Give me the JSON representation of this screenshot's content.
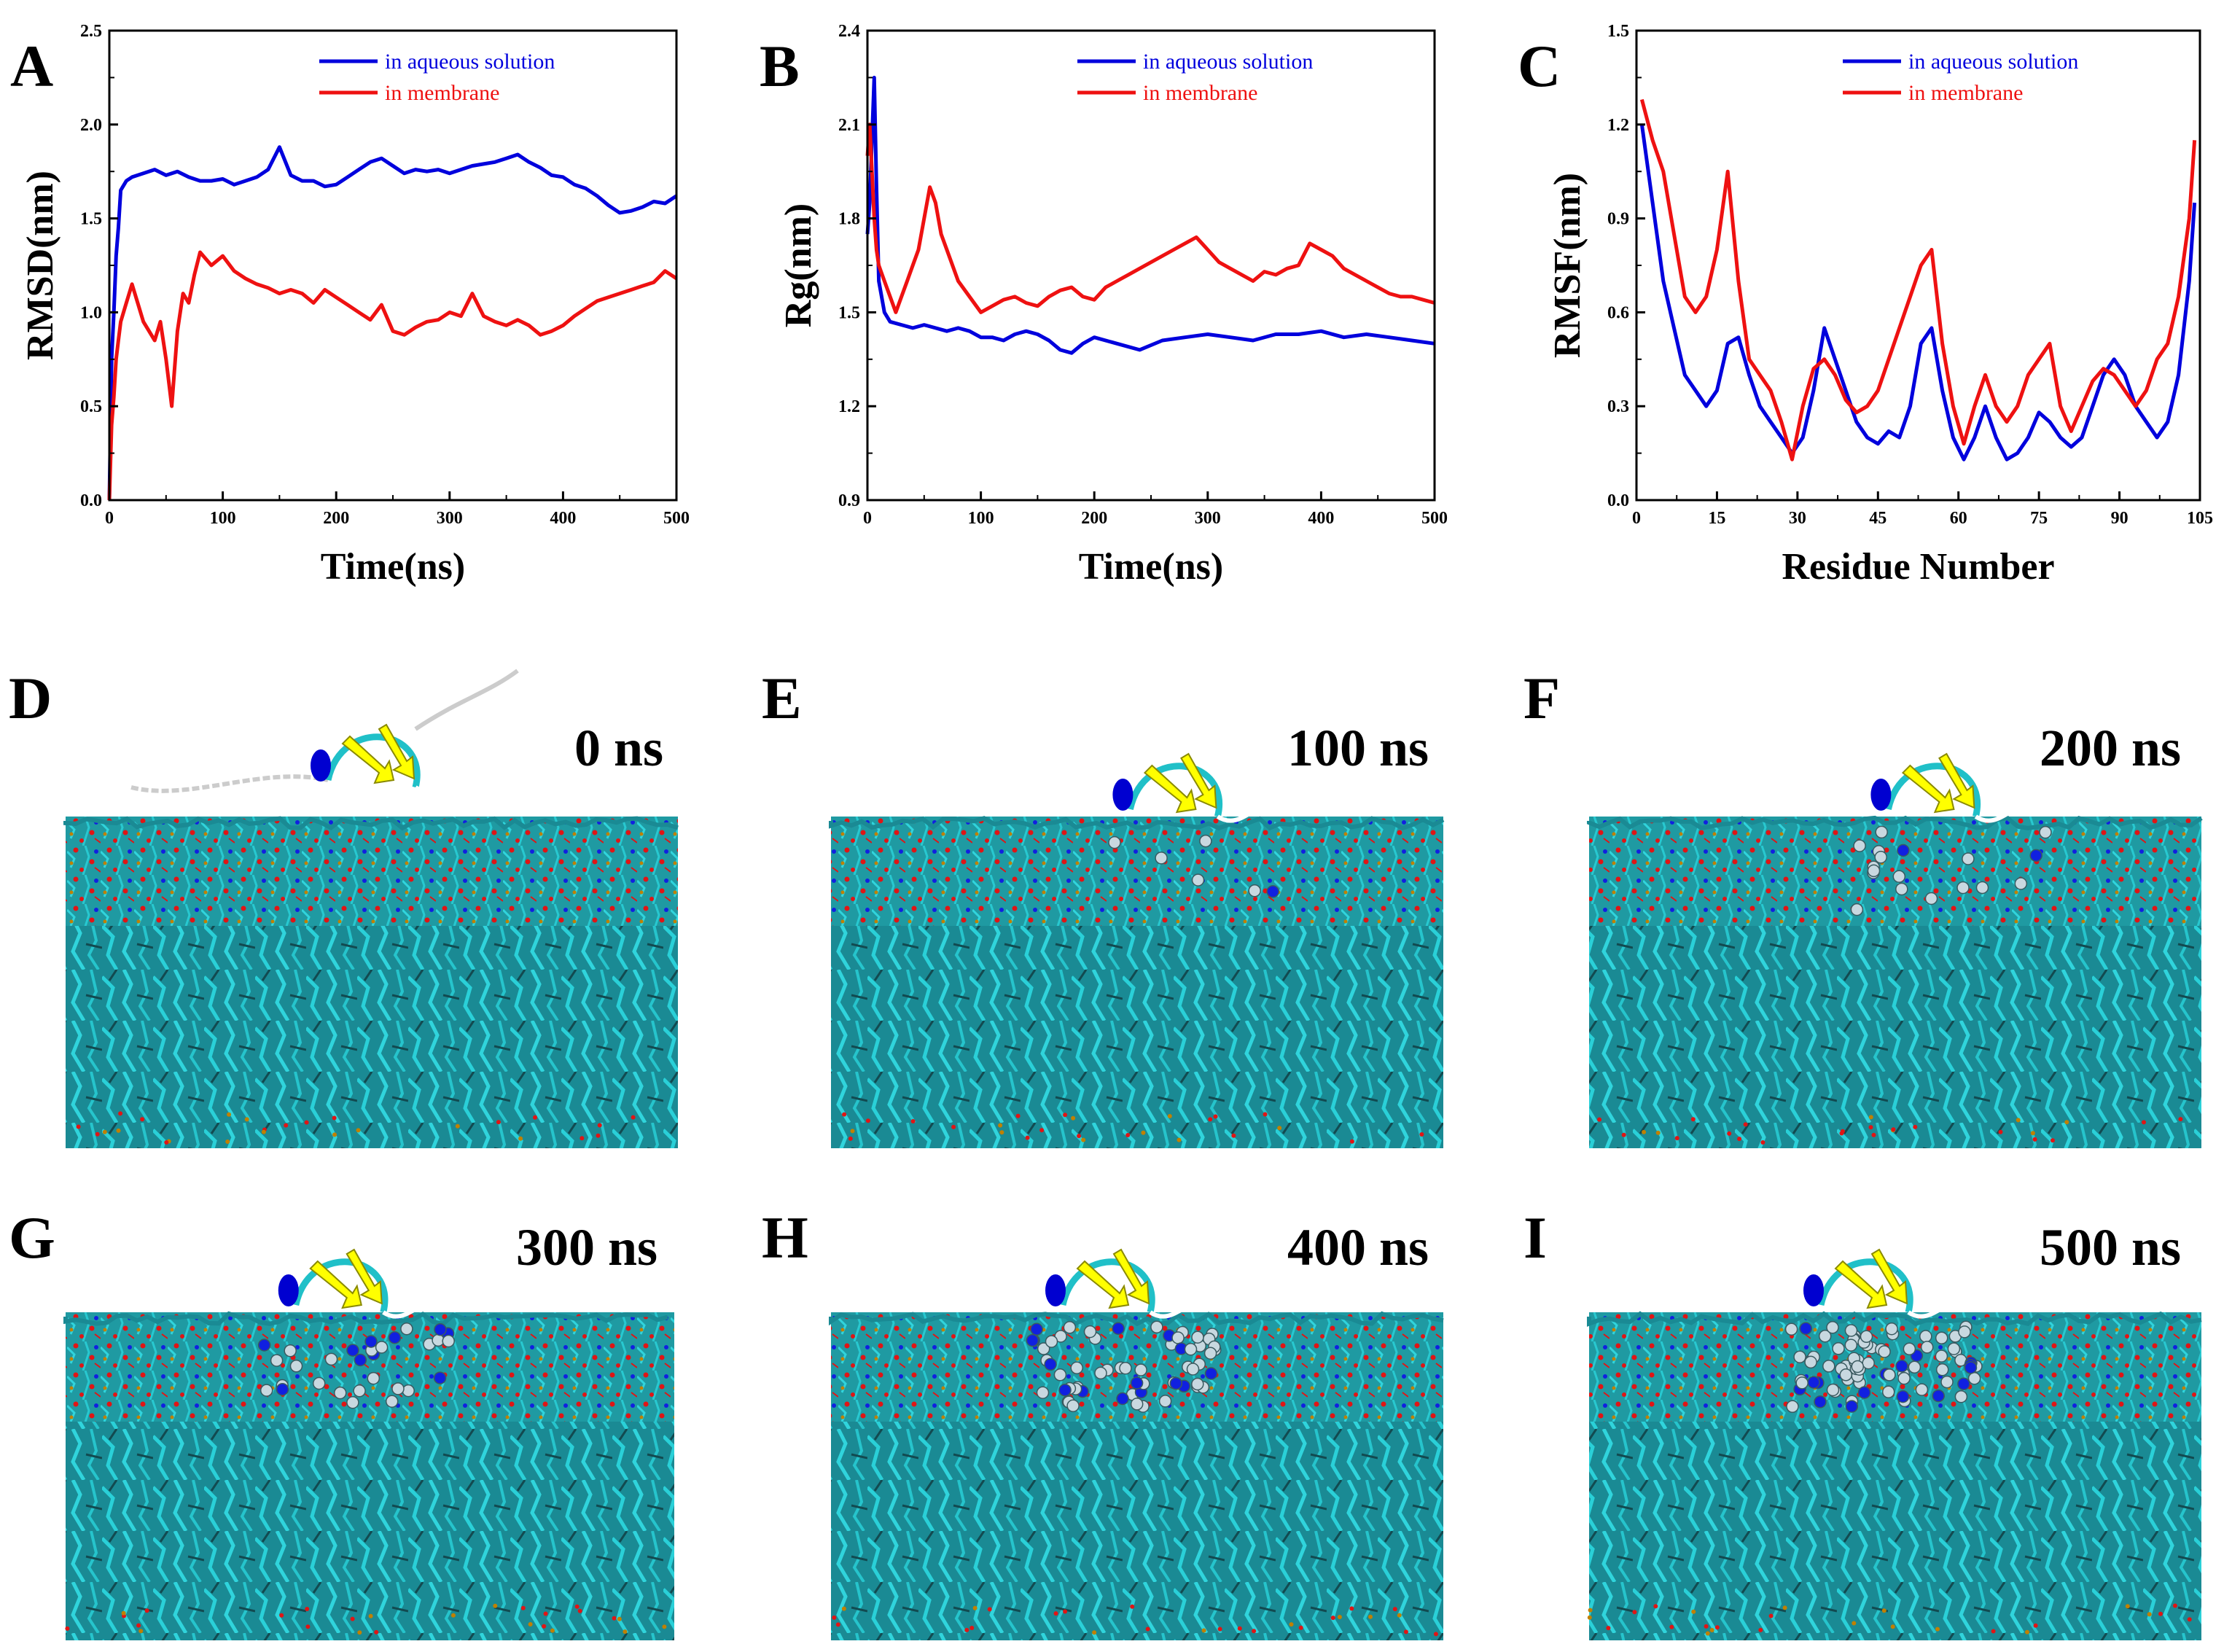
{
  "chart_data": [
    {
      "panel_label": "A",
      "type": "line",
      "xlabel": "Time(ns)",
      "ylabel": "RMSD(nm)",
      "xlim": [
        0,
        500
      ],
      "ylim": [
        0,
        2.5
      ],
      "xticks": [
        "0",
        "100",
        "200",
        "300",
        "400",
        "500"
      ],
      "yticks": [
        "0.0",
        "0.5",
        "1.0",
        "1.5",
        "2.0",
        "2.5"
      ],
      "legend": {
        "position": "top-right"
      },
      "series": [
        {
          "name": "in aqueous solution",
          "color": "#0000dd",
          "x": [
            0,
            2,
            4,
            6,
            8,
            10,
            15,
            20,
            30,
            40,
            50,
            60,
            70,
            80,
            90,
            100,
            110,
            120,
            130,
            140,
            150,
            160,
            170,
            180,
            190,
            200,
            210,
            220,
            230,
            240,
            250,
            260,
            270,
            280,
            290,
            300,
            310,
            320,
            330,
            340,
            350,
            360,
            370,
            380,
            390,
            400,
            410,
            420,
            430,
            440,
            450,
            460,
            470,
            480,
            490,
            500
          ],
          "y": [
            0.0,
            0.75,
            1.0,
            1.3,
            1.45,
            1.65,
            1.7,
            1.72,
            1.74,
            1.76,
            1.73,
            1.75,
            1.72,
            1.7,
            1.7,
            1.71,
            1.68,
            1.7,
            1.72,
            1.76,
            1.88,
            1.73,
            1.7,
            1.7,
            1.67,
            1.68,
            1.72,
            1.76,
            1.8,
            1.82,
            1.78,
            1.74,
            1.76,
            1.75,
            1.76,
            1.74,
            1.76,
            1.78,
            1.79,
            1.8,
            1.82,
            1.84,
            1.8,
            1.77,
            1.73,
            1.72,
            1.68,
            1.66,
            1.62,
            1.57,
            1.53,
            1.54,
            1.56,
            1.59,
            1.58,
            1.62
          ]
        },
        {
          "name": "in membrane",
          "color": "#ee1111",
          "x": [
            0,
            2,
            4,
            6,
            8,
            10,
            15,
            20,
            25,
            30,
            35,
            40,
            45,
            50,
            55,
            60,
            65,
            70,
            75,
            80,
            90,
            100,
            110,
            120,
            130,
            140,
            150,
            160,
            170,
            180,
            190,
            200,
            210,
            220,
            230,
            240,
            250,
            260,
            270,
            280,
            290,
            300,
            310,
            320,
            330,
            340,
            350,
            360,
            370,
            380,
            390,
            400,
            410,
            420,
            430,
            440,
            450,
            460,
            470,
            480,
            490,
            500
          ],
          "y": [
            0.0,
            0.4,
            0.55,
            0.75,
            0.85,
            0.95,
            1.05,
            1.15,
            1.05,
            0.95,
            0.9,
            0.85,
            0.95,
            0.75,
            0.5,
            0.9,
            1.1,
            1.05,
            1.2,
            1.32,
            1.25,
            1.3,
            1.22,
            1.18,
            1.15,
            1.13,
            1.1,
            1.12,
            1.1,
            1.05,
            1.12,
            1.08,
            1.04,
            1.0,
            0.96,
            1.04,
            0.9,
            0.88,
            0.92,
            0.95,
            0.96,
            1.0,
            0.98,
            1.1,
            0.98,
            0.95,
            0.93,
            0.96,
            0.93,
            0.88,
            0.9,
            0.93,
            0.98,
            1.02,
            1.06,
            1.08,
            1.1,
            1.12,
            1.14,
            1.16,
            1.22,
            1.18
          ]
        }
      ]
    },
    {
      "panel_label": "B",
      "type": "line",
      "xlabel": "Time(ns)",
      "ylabel": "Rg(nm)",
      "xlim": [
        0,
        500
      ],
      "ylim": [
        0.9,
        2.4
      ],
      "xticks": [
        "0",
        "100",
        "200",
        "300",
        "400",
        "500"
      ],
      "yticks": [
        "0.9",
        "1.2",
        "1.5",
        "1.8",
        "2.1",
        "2.4"
      ],
      "legend": {
        "position": "top-right"
      },
      "series": [
        {
          "name": "in aqueous solution",
          "color": "#0000dd",
          "x": [
            0,
            2,
            4,
            6,
            8,
            10,
            15,
            20,
            30,
            40,
            50,
            60,
            70,
            80,
            90,
            100,
            110,
            120,
            130,
            140,
            150,
            160,
            170,
            180,
            190,
            200,
            220,
            240,
            260,
            280,
            300,
            320,
            340,
            360,
            380,
            400,
            420,
            440,
            460,
            480,
            500
          ],
          "y": [
            1.75,
            1.85,
            2.05,
            2.25,
            1.9,
            1.6,
            1.5,
            1.47,
            1.46,
            1.45,
            1.46,
            1.45,
            1.44,
            1.45,
            1.44,
            1.42,
            1.42,
            1.41,
            1.43,
            1.44,
            1.43,
            1.41,
            1.38,
            1.37,
            1.4,
            1.42,
            1.4,
            1.38,
            1.41,
            1.42,
            1.43,
            1.42,
            1.41,
            1.43,
            1.43,
            1.44,
            1.42,
            1.43,
            1.42,
            1.41,
            1.4
          ]
        },
        {
          "name": "in membrane",
          "color": "#ee1111",
          "x": [
            0,
            2,
            4,
            6,
            8,
            10,
            15,
            20,
            25,
            30,
            35,
            40,
            45,
            50,
            55,
            60,
            65,
            70,
            75,
            80,
            90,
            100,
            110,
            120,
            130,
            140,
            150,
            160,
            170,
            180,
            190,
            200,
            210,
            220,
            230,
            240,
            250,
            260,
            270,
            280,
            290,
            300,
            310,
            320,
            330,
            340,
            350,
            360,
            370,
            380,
            390,
            400,
            410,
            420,
            430,
            440,
            450,
            460,
            470,
            480,
            490,
            500
          ],
          "y": [
            2.0,
            2.1,
            1.95,
            1.8,
            1.7,
            1.65,
            1.6,
            1.55,
            1.5,
            1.55,
            1.6,
            1.65,
            1.7,
            1.8,
            1.9,
            1.85,
            1.75,
            1.7,
            1.65,
            1.6,
            1.55,
            1.5,
            1.52,
            1.54,
            1.55,
            1.53,
            1.52,
            1.55,
            1.57,
            1.58,
            1.55,
            1.54,
            1.58,
            1.6,
            1.62,
            1.64,
            1.66,
            1.68,
            1.7,
            1.72,
            1.74,
            1.7,
            1.66,
            1.64,
            1.62,
            1.6,
            1.63,
            1.62,
            1.64,
            1.65,
            1.72,
            1.7,
            1.68,
            1.64,
            1.62,
            1.6,
            1.58,
            1.56,
            1.55,
            1.55,
            1.54,
            1.53
          ]
        }
      ]
    },
    {
      "panel_label": "C",
      "type": "line",
      "xlabel": "Residue Number",
      "ylabel": "RMSF(nm)",
      "xlim": [
        0,
        105
      ],
      "ylim": [
        0,
        1.5
      ],
      "xticks": [
        "0",
        "15",
        "30",
        "45",
        "60",
        "75",
        "90",
        "105"
      ],
      "yticks": [
        "0.0",
        "0.3",
        "0.6",
        "0.9",
        "1.2",
        "1.5"
      ],
      "legend": {
        "position": "top-right"
      },
      "series": [
        {
          "name": "in aqueous solution",
          "color": "#0000dd",
          "x": [
            1,
            3,
            5,
            7,
            9,
            11,
            13,
            15,
            17,
            19,
            21,
            23,
            25,
            27,
            29,
            31,
            33,
            35,
            37,
            39,
            41,
            43,
            45,
            47,
            49,
            51,
            53,
            55,
            57,
            59,
            61,
            63,
            65,
            67,
            69,
            71,
            73,
            75,
            77,
            79,
            81,
            83,
            85,
            87,
            89,
            91,
            93,
            95,
            97,
            99,
            101,
            103,
            104
          ],
          "y": [
            1.2,
            0.95,
            0.7,
            0.55,
            0.4,
            0.35,
            0.3,
            0.35,
            0.5,
            0.52,
            0.4,
            0.3,
            0.25,
            0.2,
            0.15,
            0.2,
            0.35,
            0.55,
            0.45,
            0.35,
            0.25,
            0.2,
            0.18,
            0.22,
            0.2,
            0.3,
            0.5,
            0.55,
            0.35,
            0.2,
            0.13,
            0.2,
            0.3,
            0.2,
            0.13,
            0.15,
            0.2,
            0.28,
            0.25,
            0.2,
            0.17,
            0.2,
            0.3,
            0.4,
            0.45,
            0.4,
            0.3,
            0.25,
            0.2,
            0.25,
            0.4,
            0.7,
            0.95
          ]
        },
        {
          "name": "in membrane",
          "color": "#ee1111",
          "x": [
            1,
            3,
            5,
            7,
            9,
            11,
            13,
            15,
            17,
            19,
            21,
            23,
            25,
            27,
            29,
            31,
            33,
            35,
            37,
            39,
            41,
            43,
            45,
            47,
            49,
            51,
            53,
            55,
            57,
            59,
            61,
            63,
            65,
            67,
            69,
            71,
            73,
            75,
            77,
            79,
            81,
            83,
            85,
            87,
            89,
            91,
            93,
            95,
            97,
            99,
            101,
            103,
            104
          ],
          "y": [
            1.28,
            1.15,
            1.05,
            0.85,
            0.65,
            0.6,
            0.65,
            0.8,
            1.05,
            0.7,
            0.45,
            0.4,
            0.35,
            0.25,
            0.13,
            0.3,
            0.42,
            0.45,
            0.4,
            0.32,
            0.28,
            0.3,
            0.35,
            0.45,
            0.55,
            0.65,
            0.75,
            0.8,
            0.5,
            0.3,
            0.18,
            0.3,
            0.4,
            0.3,
            0.25,
            0.3,
            0.4,
            0.45,
            0.5,
            0.3,
            0.22,
            0.3,
            0.38,
            0.42,
            0.4,
            0.35,
            0.3,
            0.35,
            0.45,
            0.5,
            0.65,
            0.9,
            1.15
          ]
        }
      ]
    }
  ],
  "snapshots": [
    {
      "panel_label": "D",
      "time_label": "0 ns"
    },
    {
      "panel_label": "E",
      "time_label": "100 ns"
    },
    {
      "panel_label": "F",
      "time_label": "200 ns"
    },
    {
      "panel_label": "G",
      "time_label": "300 ns"
    },
    {
      "panel_label": "H",
      "time_label": "400 ns"
    },
    {
      "panel_label": "I",
      "time_label": "500 ns"
    }
  ],
  "colors": {
    "membrane_tail": "#22c0c8",
    "membrane_head_oxygen": "#e01515",
    "membrane_head_nitrogen": "#1020e0",
    "membrane_phosphorus": "#c08000",
    "protein_sheet": "#ffff00",
    "protein_coil": "#20c0c8",
    "protein_turn": "#ffffff",
    "protein_helix": "#0000d0",
    "inserted_atoms": "#c8d8e0"
  }
}
